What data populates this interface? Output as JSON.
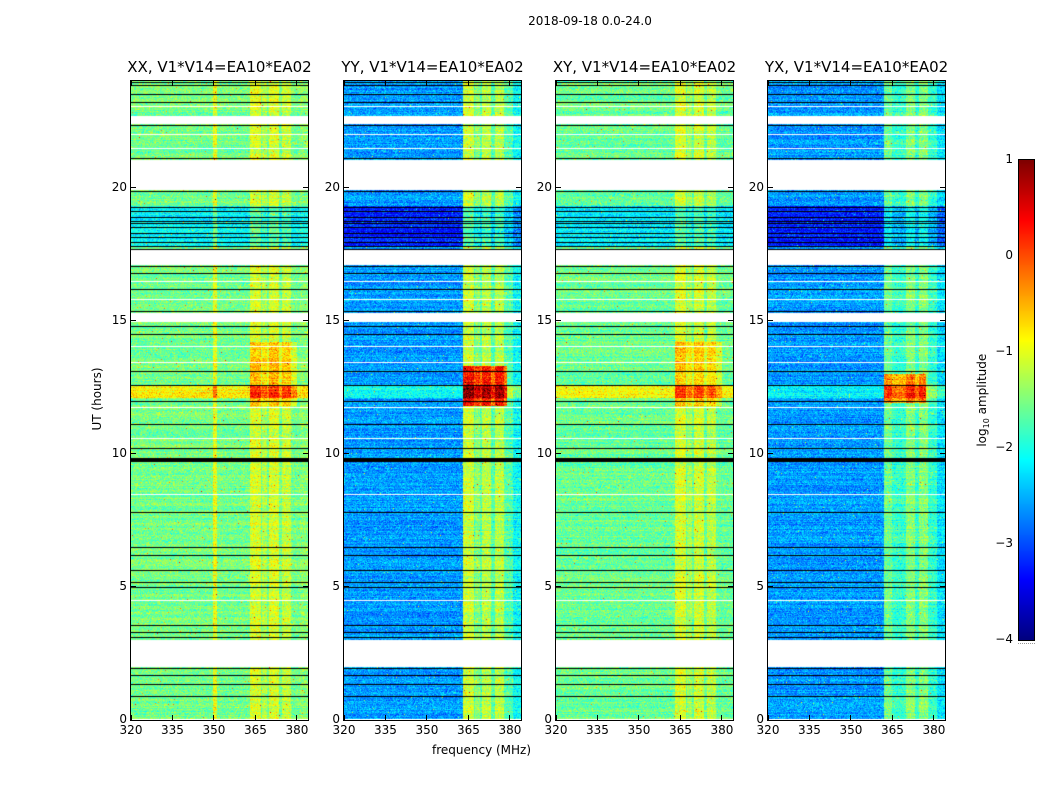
{
  "suptitle": "2018-09-18 0.0-24.0",
  "chart_data": {
    "type": "heatmap",
    "title": "2018-09-18 0.0-24.0",
    "xlabel": "frequency (MHz)",
    "ylabel": "UT (hours)",
    "xlim": [
      320,
      384
    ],
    "ylim": [
      0,
      24
    ],
    "xticks": [
      "320",
      "335",
      "350",
      "365",
      "380"
    ],
    "yticks": [
      "0",
      "5",
      "10",
      "15",
      "20"
    ],
    "colorbar": {
      "label_main": "log",
      "label_sub": "10",
      "label_rest": " amplitude",
      "range": [
        -4,
        1
      ],
      "ticks": [
        "1",
        "0",
        "−1",
        "−2",
        "−3",
        "−4"
      ],
      "colormap": "jet"
    },
    "flags": {
      "gaps_hours": [
        [
          2.0,
          3.0
        ],
        [
          14.95,
          15.3
        ],
        [
          17.1,
          17.65
        ],
        [
          19.9,
          21.05
        ],
        [
          22.4,
          22.7
        ]
      ],
      "black_lines_hours": [
        0.9,
        1.35,
        1.7,
        1.95,
        3.1,
        3.3,
        3.55,
        5.0,
        5.2,
        5.65,
        6.2,
        6.5,
        7.8,
        9.75,
        9.85,
        10.2,
        11.1,
        12.0,
        12.6,
        13.1,
        14.5,
        14.8,
        15.35,
        16.2,
        16.8,
        17.05,
        17.7,
        19.85,
        21.1,
        22.35,
        23.2,
        23.5,
        23.85,
        23.95
      ],
      "white_lines_hours": [
        0.05,
        4.5,
        8.5,
        10.6,
        11.75,
        13.45,
        14.05,
        15.8,
        16.5,
        21.5,
        22.0,
        23.05
      ],
      "dense_flag_hours": [
        17.8,
        19.3
      ]
    },
    "panels": [
      {
        "title": "XX, V1*V14=EA10*EA02",
        "base": -1.55,
        "rfi": [
          [
            349.5,
            351,
            0.6
          ],
          [
            363,
            367,
            0.5
          ],
          [
            367.5,
            369,
            0.3
          ],
          [
            370,
            373.5,
            0.5
          ],
          [
            374.5,
            378,
            0.4
          ],
          [
            381,
            384,
            0.1
          ]
        ],
        "burst": [
          11.8,
          14.2,
          363,
          380,
          0.55
        ],
        "bright_rows": [
          [
            12.1,
            12.6,
            0.7
          ]
        ]
      },
      {
        "title": "YY, V1*V14=EA10*EA02",
        "base": -2.6,
        "rfi": [
          [
            363,
            384,
            0.9
          ],
          [
            363,
            367,
            0.6
          ],
          [
            367.5,
            369,
            0.3
          ],
          [
            370,
            373,
            0.5
          ],
          [
            374.5,
            378,
            0.5
          ],
          [
            381,
            384,
            -0.4
          ]
        ],
        "burst": [
          11.8,
          13.3,
          363,
          379,
          1.6
        ],
        "bright_rows": [
          [
            12.1,
            12.6,
            0.6
          ]
        ]
      },
      {
        "title": "XY, V1*V14=EA10*EA02",
        "base": -1.6,
        "rfi": [
          [
            363,
            367,
            0.55
          ],
          [
            367.5,
            369,
            0.3
          ],
          [
            370,
            373.5,
            0.5
          ],
          [
            374.5,
            378,
            0.4
          ]
        ],
        "burst": [
          11.8,
          14.2,
          363,
          380,
          0.5
        ],
        "bright_rows": [
          [
            12.1,
            12.6,
            0.7
          ]
        ]
      },
      {
        "title": "YX, V1*V14=EA10*EA02",
        "base": -2.6,
        "rfi": [
          [
            362,
            384,
            0.75
          ],
          [
            362,
            365,
            0.3
          ],
          [
            370,
            373,
            0.4
          ],
          [
            374.5,
            378,
            0.4
          ],
          [
            381,
            384,
            -0.4
          ]
        ],
        "burst": [
          11.9,
          13.0,
          362,
          377,
          1.35
        ],
        "bright_rows": [
          [
            12.1,
            12.6,
            0.5
          ]
        ]
      }
    ]
  }
}
